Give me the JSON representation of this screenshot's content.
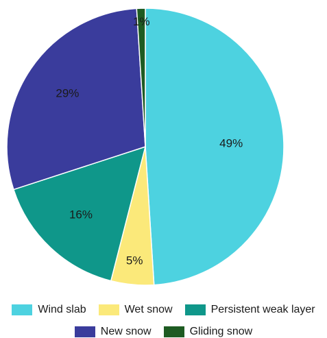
{
  "chart_data": {
    "type": "pie",
    "title": "",
    "slices": [
      {
        "name": "Wind slab",
        "value": 49,
        "label": "49%",
        "color": "#4dd2e0"
      },
      {
        "name": "Wet snow",
        "value": 5,
        "label": "5%",
        "color": "#fbe97a"
      },
      {
        "name": "Persistent weak layer",
        "value": 16,
        "label": "16%",
        "color": "#0f978a"
      },
      {
        "name": "New snow",
        "value": 29,
        "label": "29%",
        "color": "#3a3c9c"
      },
      {
        "name": "Gliding snow",
        "value": 1,
        "label": "1%",
        "color": "#1e5b22"
      }
    ],
    "legend": {
      "placement": "bottom",
      "rows": [
        [
          "Wind slab",
          "Wet snow",
          "Persistent weak layer"
        ],
        [
          "New snow",
          "Gliding snow"
        ]
      ]
    }
  }
}
